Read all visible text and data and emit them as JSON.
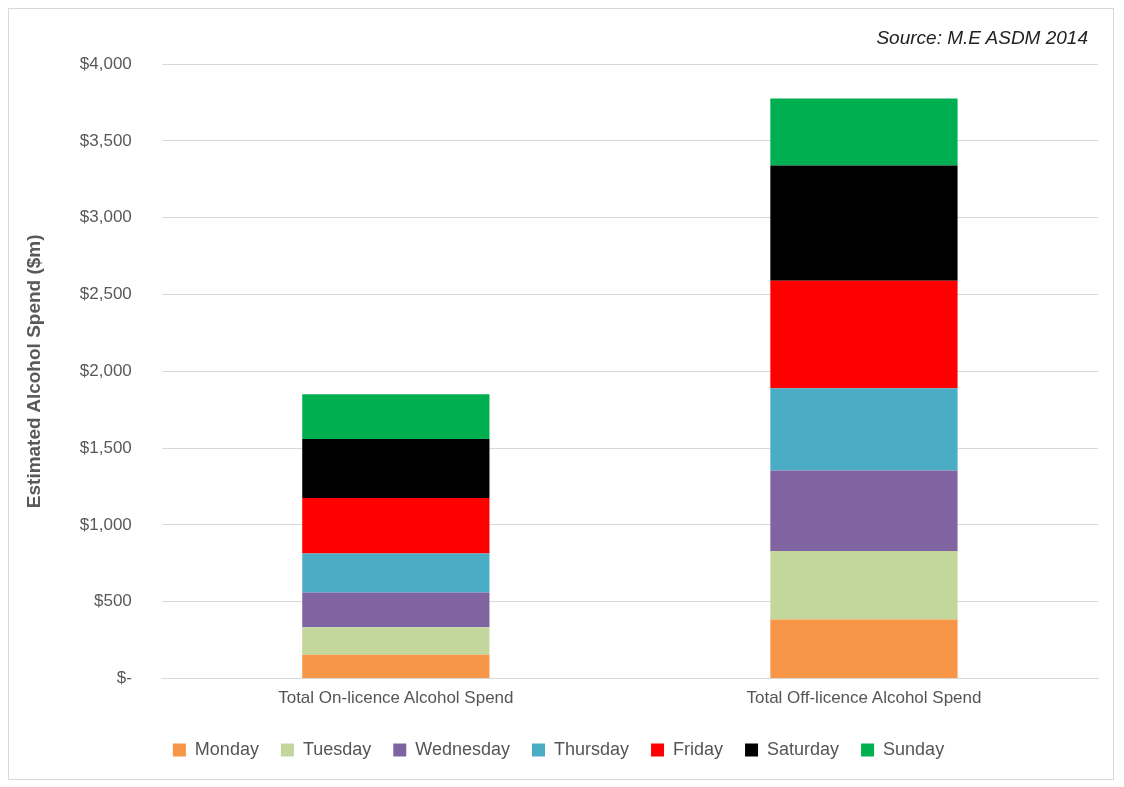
{
  "chart_data": {
    "type": "bar",
    "stacked": true,
    "ylabel": "Estimated Alcohol Spend ($m)",
    "annotations": [
      "Source: M.E ASDM 2014"
    ],
    "categories": [
      "Total On-licence Alcohol Spend",
      "Total Off-licence Alcohol Spend"
    ],
    "series": [
      {
        "name": "Monday",
        "color": "#f79646",
        "values": [
          155,
          385
        ]
      },
      {
        "name": "Tuesday",
        "color": "#c3d69b",
        "values": [
          180,
          445
        ]
      },
      {
        "name": "Wednesday",
        "color": "#8064a2",
        "values": [
          225,
          525
        ]
      },
      {
        "name": "Thursday",
        "color": "#4bacc6",
        "values": [
          255,
          535
        ]
      },
      {
        "name": "Friday",
        "color": "#ff0000",
        "values": [
          360,
          700
        ]
      },
      {
        "name": "Saturday",
        "color": "#000000",
        "values": [
          385,
          750
        ]
      },
      {
        "name": "Sunday",
        "color": "#00b050",
        "values": [
          290,
          435
        ]
      }
    ],
    "ylim": [
      0,
      4000
    ],
    "yticks": [
      {
        "value": 0,
        "label": "$-"
      },
      {
        "value": 500,
        "label": "$500"
      },
      {
        "value": 1000,
        "label": "$1,000"
      },
      {
        "value": 1500,
        "label": "$1,500"
      },
      {
        "value": 2000,
        "label": "$2,000"
      },
      {
        "value": 2500,
        "label": "$2,500"
      },
      {
        "value": 3000,
        "label": "$3,000"
      },
      {
        "value": 3500,
        "label": "$3,500"
      },
      {
        "value": 4000,
        "label": "$4,000"
      }
    ],
    "grid": "y",
    "legend": "bottom"
  }
}
